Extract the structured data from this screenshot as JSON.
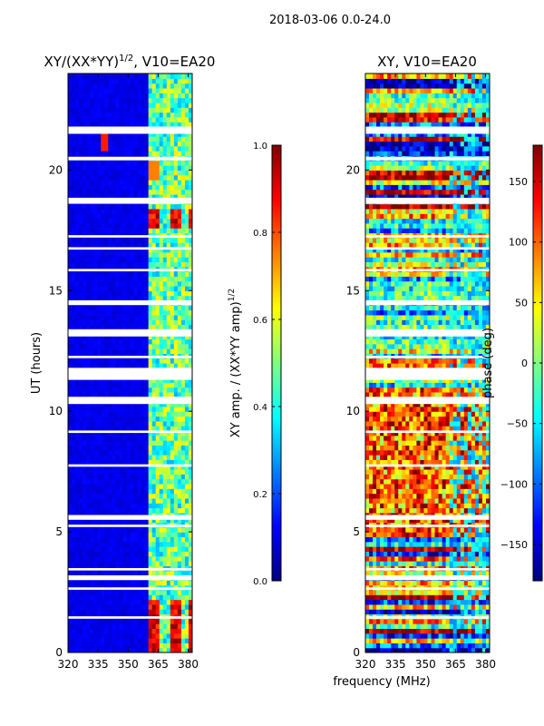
{
  "figure": {
    "suptitle": "2018-03-06 0.0-24.0",
    "xlabel": "frequency (MHz)"
  },
  "chart_data": [
    {
      "type": "heatmap",
      "title_prefix": "XY/(XX*YY)",
      "title_sup": "1/2",
      "title_suffix": ", V10=EA20",
      "xlabel": "",
      "ylabel": "UT (hours)",
      "xlim": [
        320,
        382
      ],
      "ylim": [
        0,
        24
      ],
      "xticks": [
        320,
        335,
        350,
        365,
        380
      ],
      "yticks": [
        0,
        5,
        10,
        15,
        20
      ],
      "colormap": "jet",
      "colorbar": {
        "label_prefix": "XY amp. / (XX*YY amp)",
        "label_sup": "1/2",
        "range": [
          0.0,
          1.0
        ],
        "ticks": [
          0.0,
          0.2,
          0.4,
          0.6,
          0.8,
          1.0
        ],
        "tick_labels": [
          "0.0",
          "0.2",
          "0.4",
          "0.6",
          "0.8",
          "1.0"
        ]
      },
      "flagged_time_bands_hours": [
        [
          21.5,
          21.8
        ],
        [
          20.4,
          20.55
        ],
        [
          18.6,
          18.85
        ],
        [
          17.2,
          17.3
        ],
        [
          16.7,
          16.8
        ],
        [
          15.8,
          15.9
        ],
        [
          14.4,
          14.6
        ],
        [
          13.1,
          13.4
        ],
        [
          12.2,
          12.3
        ],
        [
          11.3,
          11.8
        ],
        [
          10.3,
          10.6
        ],
        [
          9.1,
          9.2
        ],
        [
          7.7,
          7.8
        ],
        [
          5.5,
          5.7
        ],
        [
          5.2,
          5.3
        ],
        [
          3.4,
          3.5
        ],
        [
          3.0,
          3.2
        ],
        [
          2.6,
          2.7
        ],
        [
          1.4,
          1.5
        ]
      ],
      "description_of_values": "Mostly ~0.05 below 360 MHz; ~0.3-0.6 across 362-382 MHz with bright 0.8-1.0 channels near 0.5-2 h and 18 h"
    },
    {
      "type": "heatmap",
      "title_prefix": "XY, V10=EA20",
      "title_sup": "",
      "title_suffix": "",
      "xlabel": "",
      "ylabel": "",
      "xlim": [
        320,
        382
      ],
      "ylim": [
        0,
        24
      ],
      "xticks": [
        320,
        335,
        350,
        365,
        380
      ],
      "yticks": [
        0,
        5,
        10,
        15,
        20
      ],
      "colormap": "jet",
      "colorbar": {
        "label_prefix": "phase (deg)",
        "label_sup": "",
        "range": [
          -180,
          180
        ],
        "ticks": [
          -150,
          -100,
          -50,
          0,
          50,
          100,
          150
        ],
        "tick_labels": [
          "−150",
          "−100",
          "−50",
          "0",
          "50",
          "100",
          "150"
        ]
      },
      "flagged_time_bands_hours": [
        [
          21.5,
          21.8
        ],
        [
          20.4,
          20.55
        ],
        [
          18.6,
          18.85
        ],
        [
          17.2,
          17.3
        ],
        [
          16.7,
          16.8
        ],
        [
          15.8,
          15.9
        ],
        [
          14.4,
          14.6
        ],
        [
          13.1,
          13.4
        ],
        [
          12.2,
          12.3
        ],
        [
          11.3,
          11.8
        ],
        [
          10.3,
          10.6
        ],
        [
          9.1,
          9.2
        ],
        [
          7.7,
          7.8
        ],
        [
          5.5,
          5.7
        ],
        [
          5.2,
          5.3
        ],
        [
          3.4,
          3.5
        ],
        [
          3.0,
          3.2
        ],
        [
          2.6,
          2.7
        ],
        [
          1.4,
          1.5
        ]
      ],
      "description_of_values": "Noisy phase spanning full range; orange/red (~90-150 deg) dominant 5-11 h, mixed blue/cyan/yellow elsewhere"
    }
  ]
}
